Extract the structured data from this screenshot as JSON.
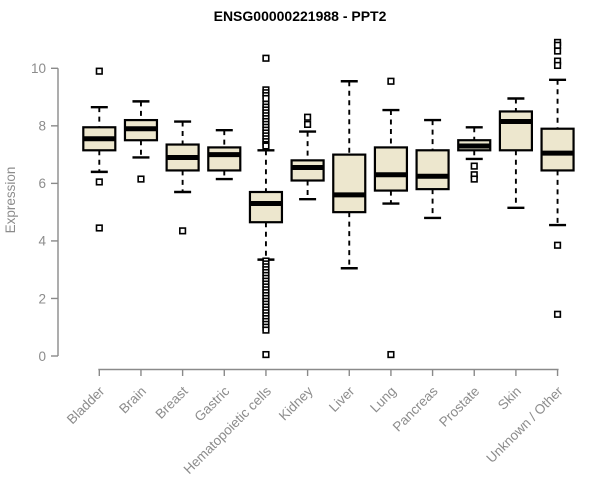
{
  "title": "ENSG00000221988 - PPT2",
  "chart_data": {
    "type": "boxplot",
    "title": "ENSG00000221988 - PPT2",
    "xlabel": "",
    "ylabel": "Expression",
    "yticks": [
      0,
      2,
      4,
      6,
      8,
      10
    ],
    "ylim": [
      0,
      11.2
    ],
    "grid": false,
    "legend": "none",
    "categories": [
      "Bladder",
      "Brain",
      "Breast",
      "Gastric",
      "Hematopoietic cells",
      "Kidney",
      "Liver",
      "Lung",
      "Pancreas",
      "Prostate",
      "Skin",
      "Unknown / Other"
    ],
    "series": [
      {
        "name": "Bladder",
        "low": 6.4,
        "q1": 7.15,
        "median": 7.55,
        "q3": 7.95,
        "high": 8.65,
        "outliers": [
          9.9,
          6.05,
          4.45
        ]
      },
      {
        "name": "Brain",
        "low": 6.9,
        "q1": 7.5,
        "median": 7.9,
        "q3": 8.2,
        "high": 8.85,
        "outliers": [
          6.15
        ]
      },
      {
        "name": "Breast",
        "low": 5.7,
        "q1": 6.45,
        "median": 6.9,
        "q3": 7.35,
        "high": 8.15,
        "outliers": [
          4.35
        ]
      },
      {
        "name": "Gastric",
        "low": 6.15,
        "q1": 6.45,
        "median": 7.0,
        "q3": 7.25,
        "high": 7.85,
        "outliers": []
      },
      {
        "name": "Hematopoietic cells",
        "low": 3.35,
        "q1": 4.65,
        "median": 5.3,
        "q3": 5.7,
        "high": 7.15,
        "outliers": [
          10.35,
          9.25,
          9.15,
          9.05,
          8.95,
          8.75,
          8.65,
          8.55,
          8.45,
          8.35,
          8.25,
          8.15,
          8.05,
          7.95,
          7.85,
          7.75,
          7.65,
          7.55,
          7.45,
          7.35,
          7.3,
          3.3,
          3.2,
          3.1,
          3.0,
          2.9,
          2.8,
          2.7,
          2.6,
          2.5,
          2.4,
          2.3,
          2.2,
          2.1,
          2.0,
          1.9,
          1.8,
          1.7,
          1.6,
          1.5,
          1.4,
          1.3,
          1.2,
          1.1,
          1.0,
          0.9,
          0.05
        ]
      },
      {
        "name": "Kidney",
        "low": 5.45,
        "q1": 6.1,
        "median": 6.55,
        "q3": 6.8,
        "high": 7.8,
        "outliers": [
          8.3,
          8.05
        ]
      },
      {
        "name": "Liver",
        "low": 3.05,
        "q1": 5.0,
        "median": 5.6,
        "q3": 7.0,
        "high": 9.55,
        "outliers": []
      },
      {
        "name": "Lung",
        "low": 5.3,
        "q1": 5.75,
        "median": 6.3,
        "q3": 7.25,
        "high": 8.55,
        "outliers": [
          9.55,
          0.05
        ]
      },
      {
        "name": "Pancreas",
        "low": 4.8,
        "q1": 5.8,
        "median": 6.25,
        "q3": 7.15,
        "high": 8.2,
        "outliers": []
      },
      {
        "name": "Prostate",
        "low": 6.85,
        "q1": 7.15,
        "median": 7.3,
        "q3": 7.5,
        "high": 7.95,
        "outliers": [
          6.6,
          6.3,
          6.15
        ]
      },
      {
        "name": "Skin",
        "low": 5.15,
        "q1": 7.15,
        "median": 8.15,
        "q3": 8.5,
        "high": 8.95,
        "outliers": []
      },
      {
        "name": "Unknown / Other",
        "low": 4.55,
        "q1": 6.45,
        "median": 7.05,
        "q3": 7.9,
        "high": 9.6,
        "outliers": [
          10.9,
          10.8,
          10.6,
          10.25,
          10.1,
          3.85,
          1.45
        ]
      }
    ],
    "colors": {
      "box_fill": "#EDE7CE",
      "box_border": "#000000",
      "median": "#000000",
      "whisker": "#000000",
      "outlier_stroke": "#000000",
      "outlier_fill": "#ffffff",
      "axis": "#8a8a8a",
      "tick_label": "#8c8c8c",
      "title": "#000000",
      "background": "#ffffff"
    }
  }
}
